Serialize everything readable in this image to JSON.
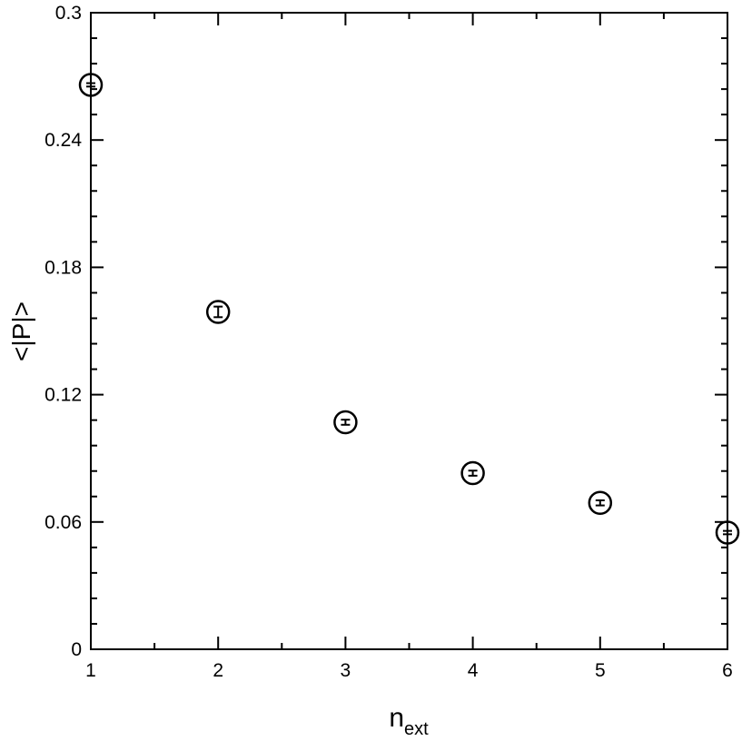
{
  "chart_data": {
    "type": "scatter",
    "xlabel": "n",
    "xlabel_subscript": "ext",
    "ylabel": "<|P|>",
    "xlim": [
      1,
      6
    ],
    "ylim": [
      0,
      0.3
    ],
    "xticks": [
      1,
      2,
      3,
      4,
      5,
      6
    ],
    "yticks": [
      0,
      0.06,
      0.12,
      0.18,
      0.24,
      0.3
    ],
    "xtick_labels": [
      "1",
      "2",
      "3",
      "4",
      "5",
      "6"
    ],
    "ytick_labels": [
      "0",
      "0.06",
      "0.12",
      "0.18",
      "0.24",
      "0.3"
    ],
    "grid": false,
    "marker": "open-circle",
    "series": [
      {
        "points": [
          {
            "x": 1,
            "y": 0.266,
            "err": 0.0008
          },
          {
            "x": 2,
            "y": 0.159,
            "err": 0.0025
          },
          {
            "x": 3,
            "y": 0.107,
            "err": 0.0012
          },
          {
            "x": 4,
            "y": 0.083,
            "err": 0.0012
          },
          {
            "x": 5,
            "y": 0.069,
            "err": 0.0012
          },
          {
            "x": 6,
            "y": 0.055,
            "err": 0.0008
          }
        ]
      }
    ]
  }
}
